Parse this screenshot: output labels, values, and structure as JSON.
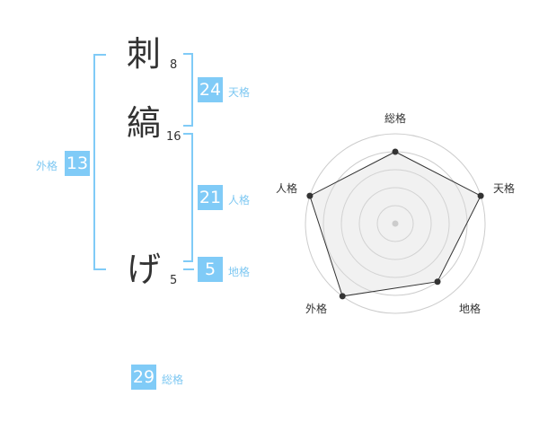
{
  "name_chars": [
    {
      "char": "刺",
      "strokes": "8"
    },
    {
      "char": "縞",
      "strokes": "16"
    },
    {
      "char": "げ",
      "strokes": "5"
    }
  ],
  "fortunes": {
    "tenkaku": {
      "label": "天格",
      "value": "24"
    },
    "jinkaku": {
      "label": "人格",
      "value": "21"
    },
    "chikaku": {
      "label": "地格",
      "value": "5"
    },
    "gaikaku": {
      "label": "外格",
      "value": "13"
    },
    "soukaku": {
      "label": "総格",
      "value": "29"
    }
  },
  "accent_color": "#80cbf7",
  "chart_data": {
    "type": "radar",
    "axes": [
      "総格",
      "天格",
      "地格",
      "外格",
      "人格"
    ],
    "values": [
      4,
      5,
      4,
      5,
      5
    ],
    "range": [
      0,
      5
    ],
    "rings": 5
  }
}
